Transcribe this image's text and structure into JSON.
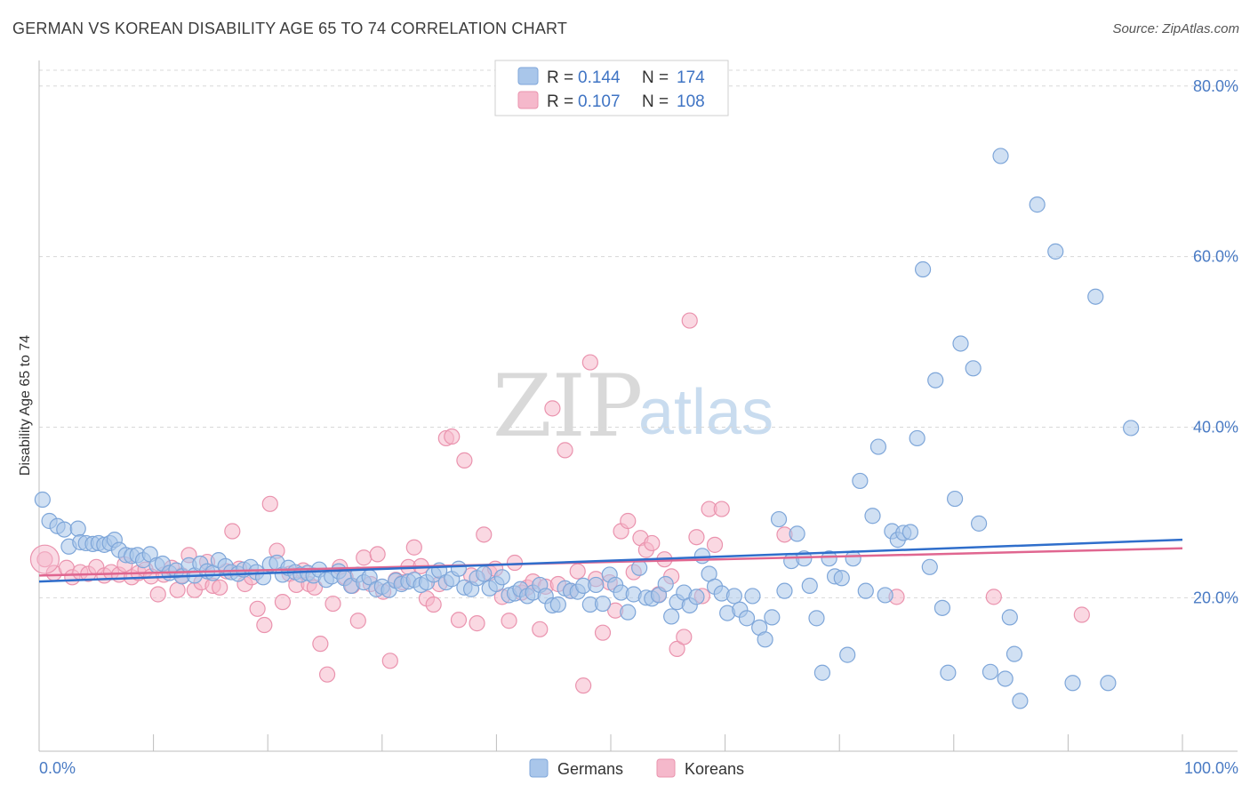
{
  "header": {
    "title": "GERMAN VS KOREAN DISABILITY AGE 65 TO 74 CORRELATION CHART",
    "source": "Source: ZipAtlas.com"
  },
  "watermark": {
    "zip": "ZIP",
    "atlas": "atlas"
  },
  "colors": {
    "german_fill": "#a9c6ea",
    "german_stroke": "#7ea6d9",
    "german_line": "#2f6ecb",
    "korean_fill": "#f5b8cb",
    "korean_stroke": "#ea93ae",
    "korean_line": "#e06690",
    "tick": "#4a7bc4",
    "grid": "#d8d8d8"
  },
  "legend": {
    "rows": [
      {
        "r_label": "R =",
        "r_value": "0.144",
        "n_label": "N =",
        "n_value": "174"
      },
      {
        "r_label": "R =",
        "r_value": "0.107",
        "n_label": "N =",
        "n_value": "108"
      }
    ]
  },
  "bottom_legend": {
    "items": [
      "Germans",
      "Koreans"
    ]
  },
  "chart_data": {
    "type": "scatter",
    "title": "GERMAN VS KOREAN DISABILITY AGE 65 TO 74 CORRELATION CHART",
    "ylabel": "Disability Age 65 to 74",
    "xlabel": "",
    "xlim": [
      0,
      100
    ],
    "ylim": [
      2,
      83
    ],
    "x_tick_labels": [
      "0.0%",
      "100.0%"
    ],
    "y_ticks": [
      20,
      40,
      60,
      80
    ],
    "y_tick_labels": [
      "20.0%",
      "40.0%",
      "60.0%",
      "80.0%"
    ],
    "grid": true,
    "legend_position": "top-center",
    "series": [
      {
        "name": "Germans",
        "trend": {
          "x": [
            0,
            100
          ],
          "y": [
            21.9,
            26.8
          ]
        },
        "points": [
          [
            0.3,
            31.5
          ],
          [
            0.9,
            29.0
          ],
          [
            1.6,
            28.4
          ],
          [
            2.2,
            28.0
          ],
          [
            2.6,
            26.0
          ],
          [
            3.4,
            28.1
          ],
          [
            3.6,
            26.5
          ],
          [
            4.1,
            26.4
          ],
          [
            4.7,
            26.3
          ],
          [
            5.2,
            26.4
          ],
          [
            5.7,
            26.2
          ],
          [
            6.2,
            26.4
          ],
          [
            6.6,
            26.8
          ],
          [
            7.0,
            25.6
          ],
          [
            7.6,
            25.0
          ],
          [
            8.1,
            24.9
          ],
          [
            8.6,
            25.0
          ],
          [
            9.1,
            24.4
          ],
          [
            9.7,
            25.1
          ],
          [
            10.3,
            23.8
          ],
          [
            10.8,
            24.0
          ],
          [
            11.4,
            22.9
          ],
          [
            12.0,
            23.2
          ],
          [
            12.5,
            22.5
          ],
          [
            13.1,
            23.8
          ],
          [
            13.6,
            22.6
          ],
          [
            14.1,
            24.0
          ],
          [
            14.7,
            23.1
          ],
          [
            15.2,
            22.9
          ],
          [
            15.7,
            24.4
          ],
          [
            16.3,
            23.7
          ],
          [
            16.8,
            23.0
          ],
          [
            17.4,
            22.8
          ],
          [
            17.9,
            23.3
          ],
          [
            18.5,
            23.6
          ],
          [
            19.0,
            23.0
          ],
          [
            19.6,
            22.4
          ],
          [
            20.2,
            23.9
          ],
          [
            20.8,
            24.1
          ],
          [
            21.3,
            22.7
          ],
          [
            21.8,
            23.5
          ],
          [
            22.4,
            23.0
          ],
          [
            22.9,
            22.7
          ],
          [
            23.5,
            22.9
          ],
          [
            24.0,
            22.6
          ],
          [
            24.5,
            23.3
          ],
          [
            25.1,
            22.1
          ],
          [
            25.6,
            22.5
          ],
          [
            26.2,
            23.1
          ],
          [
            26.7,
            22.3
          ],
          [
            27.3,
            21.4
          ],
          [
            27.9,
            22.7
          ],
          [
            28.4,
            21.8
          ],
          [
            28.9,
            22.4
          ],
          [
            29.5,
            21.0
          ],
          [
            30.0,
            21.3
          ],
          [
            30.6,
            20.9
          ],
          [
            31.2,
            22.0
          ],
          [
            31.7,
            21.6
          ],
          [
            32.3,
            21.9
          ],
          [
            32.8,
            22.1
          ],
          [
            33.4,
            21.5
          ],
          [
            33.9,
            21.8
          ],
          [
            34.5,
            22.7
          ],
          [
            35.0,
            23.2
          ],
          [
            35.6,
            21.8
          ],
          [
            36.1,
            22.2
          ],
          [
            36.7,
            23.4
          ],
          [
            37.2,
            21.2
          ],
          [
            37.8,
            21.0
          ],
          [
            38.3,
            22.3
          ],
          [
            38.9,
            22.8
          ],
          [
            39.4,
            21.1
          ],
          [
            40.0,
            21.6
          ],
          [
            40.5,
            22.4
          ],
          [
            41.1,
            20.3
          ],
          [
            41.6,
            20.5
          ],
          [
            42.1,
            21.0
          ],
          [
            42.7,
            20.2
          ],
          [
            43.2,
            20.6
          ],
          [
            43.8,
            21.5
          ],
          [
            44.3,
            20.2
          ],
          [
            44.9,
            19.1
          ],
          [
            45.4,
            19.2
          ],
          [
            46.0,
            21.1
          ],
          [
            46.5,
            20.8
          ],
          [
            47.1,
            20.7
          ],
          [
            47.6,
            21.4
          ],
          [
            48.2,
            19.2
          ],
          [
            48.7,
            21.5
          ],
          [
            49.3,
            19.3
          ],
          [
            49.9,
            22.7
          ],
          [
            50.4,
            21.5
          ],
          [
            50.9,
            20.6
          ],
          [
            51.5,
            18.3
          ],
          [
            52.0,
            20.4
          ],
          [
            52.5,
            23.5
          ],
          [
            53.1,
            20.0
          ],
          [
            53.6,
            19.9
          ],
          [
            54.2,
            20.3
          ],
          [
            54.8,
            21.6
          ],
          [
            55.3,
            17.8
          ],
          [
            55.8,
            19.5
          ],
          [
            56.4,
            20.6
          ],
          [
            56.9,
            19.1
          ],
          [
            57.5,
            20.1
          ],
          [
            58.0,
            24.9
          ],
          [
            58.6,
            22.8
          ],
          [
            59.1,
            21.3
          ],
          [
            59.7,
            20.5
          ],
          [
            60.2,
            18.2
          ],
          [
            60.8,
            20.2
          ],
          [
            61.3,
            18.6
          ],
          [
            61.9,
            17.6
          ],
          [
            62.4,
            20.2
          ],
          [
            63.0,
            16.5
          ],
          [
            63.5,
            15.1
          ],
          [
            64.1,
            17.7
          ],
          [
            64.7,
            29.2
          ],
          [
            65.2,
            20.8
          ],
          [
            65.8,
            24.3
          ],
          [
            66.3,
            27.5
          ],
          [
            66.9,
            24.6
          ],
          [
            67.4,
            21.4
          ],
          [
            68.0,
            17.6
          ],
          [
            68.5,
            11.2
          ],
          [
            69.1,
            24.6
          ],
          [
            69.6,
            22.5
          ],
          [
            70.2,
            22.3
          ],
          [
            70.7,
            13.3
          ],
          [
            71.2,
            24.6
          ],
          [
            71.8,
            33.7
          ],
          [
            72.3,
            20.8
          ],
          [
            72.9,
            29.6
          ],
          [
            73.4,
            37.7
          ],
          [
            74.0,
            20.3
          ],
          [
            74.6,
            27.8
          ],
          [
            75.1,
            26.8
          ],
          [
            75.6,
            27.6
          ],
          [
            76.2,
            27.7
          ],
          [
            76.8,
            38.7
          ],
          [
            77.3,
            58.5
          ],
          [
            77.9,
            23.6
          ],
          [
            78.4,
            45.5
          ],
          [
            79.0,
            18.8
          ],
          [
            79.5,
            11.2
          ],
          [
            80.1,
            31.6
          ],
          [
            80.6,
            49.8
          ],
          [
            81.7,
            46.9
          ],
          [
            82.2,
            28.7
          ],
          [
            83.2,
            11.3
          ],
          [
            84.1,
            71.8
          ],
          [
            84.5,
            10.5
          ],
          [
            84.9,
            17.7
          ],
          [
            85.3,
            13.4
          ],
          [
            85.8,
            7.9
          ],
          [
            87.3,
            66.1
          ],
          [
            88.9,
            60.6
          ],
          [
            90.4,
            10.0
          ],
          [
            92.4,
            55.3
          ],
          [
            93.5,
            10.0
          ],
          [
            95.5,
            39.9
          ]
        ]
      },
      {
        "name": "Koreans",
        "trend": {
          "x": [
            0,
            100
          ],
          "y": [
            22.6,
            25.8
          ]
        },
        "points": [
          [
            0.5,
            24.5
          ],
          [
            1.3,
            22.9
          ],
          [
            2.4,
            23.5
          ],
          [
            2.9,
            22.4
          ],
          [
            3.6,
            23.0
          ],
          [
            4.3,
            22.8
          ],
          [
            5.0,
            23.6
          ],
          [
            5.7,
            22.6
          ],
          [
            6.3,
            23.0
          ],
          [
            7.0,
            22.7
          ],
          [
            7.5,
            23.9
          ],
          [
            8.1,
            22.4
          ],
          [
            8.7,
            22.9
          ],
          [
            9.3,
            23.3
          ],
          [
            9.8,
            22.5
          ],
          [
            10.4,
            20.4
          ],
          [
            10.9,
            22.7
          ],
          [
            11.6,
            23.5
          ],
          [
            12.1,
            20.9
          ],
          [
            12.5,
            22.6
          ],
          [
            13.1,
            25.0
          ],
          [
            13.6,
            20.9
          ],
          [
            14.2,
            21.8
          ],
          [
            14.7,
            24.2
          ],
          [
            15.2,
            21.4
          ],
          [
            15.8,
            21.2
          ],
          [
            16.4,
            23.1
          ],
          [
            16.9,
            27.8
          ],
          [
            17.5,
            23.4
          ],
          [
            18.0,
            21.6
          ],
          [
            18.6,
            22.4
          ],
          [
            19.1,
            18.7
          ],
          [
            19.7,
            16.8
          ],
          [
            20.2,
            31.0
          ],
          [
            20.8,
            25.5
          ],
          [
            21.3,
            19.5
          ],
          [
            21.9,
            22.8
          ],
          [
            22.5,
            21.5
          ],
          [
            23.1,
            23.2
          ],
          [
            23.6,
            21.6
          ],
          [
            24.1,
            21.2
          ],
          [
            24.6,
            14.6
          ],
          [
            25.2,
            11.0
          ],
          [
            25.7,
            19.3
          ],
          [
            26.3,
            23.6
          ],
          [
            26.8,
            22.4
          ],
          [
            27.4,
            21.4
          ],
          [
            27.9,
            17.3
          ],
          [
            28.4,
            24.7
          ],
          [
            29.0,
            21.6
          ],
          [
            29.6,
            25.1
          ],
          [
            30.1,
            20.7
          ],
          [
            30.7,
            12.6
          ],
          [
            31.2,
            22.1
          ],
          [
            31.8,
            21.8
          ],
          [
            32.3,
            23.6
          ],
          [
            32.8,
            25.9
          ],
          [
            33.4,
            23.7
          ],
          [
            33.9,
            19.9
          ],
          [
            34.5,
            19.2
          ],
          [
            35.0,
            21.6
          ],
          [
            35.6,
            38.7
          ],
          [
            36.1,
            38.9
          ],
          [
            36.7,
            17.4
          ],
          [
            37.2,
            36.1
          ],
          [
            37.8,
            22.6
          ],
          [
            38.3,
            17.0
          ],
          [
            38.9,
            27.4
          ],
          [
            39.4,
            22.9
          ],
          [
            39.9,
            23.4
          ],
          [
            40.5,
            20.1
          ],
          [
            41.1,
            17.3
          ],
          [
            41.6,
            24.1
          ],
          [
            42.2,
            20.6
          ],
          [
            42.7,
            21.2
          ],
          [
            43.2,
            21.9
          ],
          [
            43.8,
            16.3
          ],
          [
            44.3,
            21.3
          ],
          [
            44.9,
            42.2
          ],
          [
            45.4,
            21.6
          ],
          [
            46.0,
            37.3
          ],
          [
            46.5,
            20.8
          ],
          [
            47.1,
            23.1
          ],
          [
            47.6,
            9.7
          ],
          [
            48.2,
            47.6
          ],
          [
            48.7,
            22.2
          ],
          [
            49.3,
            15.9
          ],
          [
            49.9,
            21.8
          ],
          [
            50.4,
            18.5
          ],
          [
            50.9,
            27.8
          ],
          [
            51.5,
            29.0
          ],
          [
            52.0,
            23.0
          ],
          [
            52.6,
            27.0
          ],
          [
            53.1,
            25.6
          ],
          [
            53.6,
            26.4
          ],
          [
            54.2,
            20.4
          ],
          [
            54.7,
            24.5
          ],
          [
            55.3,
            22.5
          ],
          [
            55.8,
            14.0
          ],
          [
            56.4,
            15.4
          ],
          [
            56.9,
            52.5
          ],
          [
            57.5,
            27.1
          ],
          [
            58.0,
            20.2
          ],
          [
            58.6,
            30.4
          ],
          [
            59.1,
            26.2
          ],
          [
            59.7,
            30.4
          ],
          [
            65.2,
            27.4
          ],
          [
            75.0,
            20.1
          ],
          [
            83.5,
            20.1
          ],
          [
            91.2,
            18.0
          ]
        ]
      }
    ]
  }
}
